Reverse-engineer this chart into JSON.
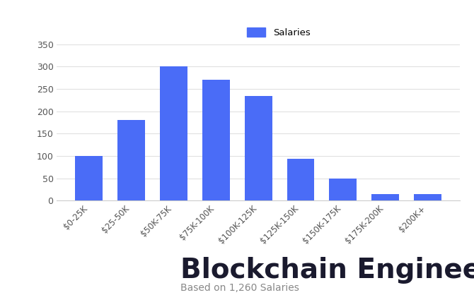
{
  "categories": [
    "$0-25K",
    "$25-50K",
    "$50K-75K",
    "$75K-100K",
    "$100K-125K",
    "$125K-150K",
    "$150K-175K",
    "$175K-200K",
    "$200K+"
  ],
  "values": [
    100,
    180,
    300,
    270,
    235,
    93,
    50,
    15,
    15
  ],
  "bar_color": "#4A6CF7",
  "legend_label": "Salaries",
  "ylim": [
    0,
    370
  ],
  "yticks": [
    0,
    50,
    100,
    150,
    200,
    250,
    300,
    350
  ],
  "title": "Blockchain Engineer Salaries",
  "subtitle": "Based on 1,260 Salaries",
  "title_fontsize": 28,
  "subtitle_fontsize": 10,
  "background_color": "#ffffff",
  "tick_label_fontsize": 8.5,
  "ytick_fontsize": 9
}
